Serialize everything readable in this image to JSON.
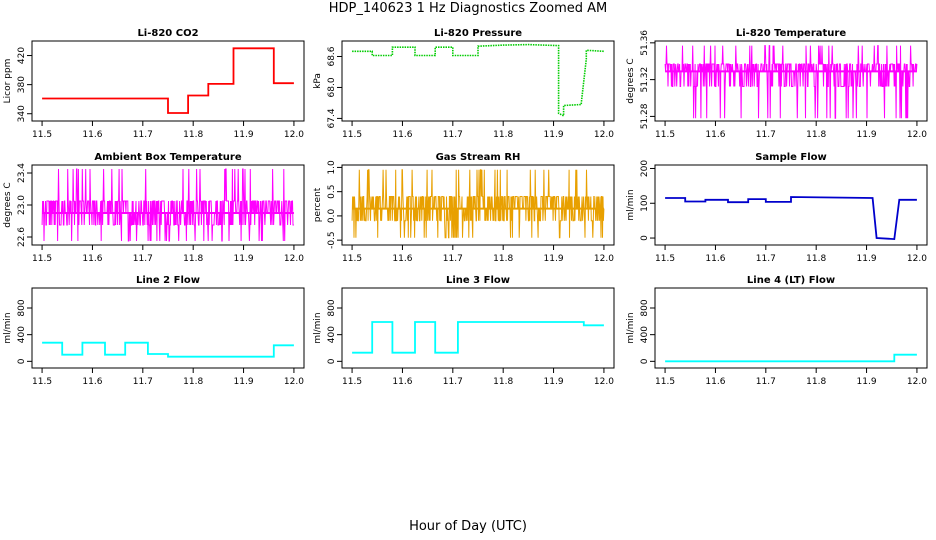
{
  "figure": {
    "title": "HDP_140623  1 Hz Diagnostics Zoomed AM",
    "bottom_label": "Hour of Day (UTC)"
  },
  "chart_data": [
    {
      "type": "line",
      "title": "Li-820 CO2",
      "xlabel": "",
      "ylabel": "Licor ppm",
      "xlim": [
        11.48,
        12.02
      ],
      "ylim": [
        330,
        440
      ],
      "x_ticks": [
        "11.5",
        "11.6",
        "11.7",
        "11.8",
        "11.9",
        "12.0"
      ],
      "y_ticks": [
        "340",
        "380",
        "420"
      ],
      "color": "#ff0000",
      "style": "line",
      "series": [
        {
          "x": [
            11.5,
            11.75,
            11.75,
            11.79,
            11.79,
            11.83,
            11.83,
            11.88,
            11.88,
            11.96,
            11.96,
            12.0
          ],
          "values": [
            361,
            361,
            341,
            341,
            365,
            365,
            381,
            381,
            430,
            430,
            382,
            382
          ]
        }
      ]
    },
    {
      "type": "line",
      "title": "Li-820 Pressure",
      "xlabel": "",
      "ylabel": "kPa",
      "xlim": [
        11.48,
        12.02
      ],
      "ylim": [
        67.35,
        68.9
      ],
      "x_ticks": [
        "11.5",
        "11.6",
        "11.7",
        "11.8",
        "11.9",
        "12.0"
      ],
      "y_ticks": [
        "67.4",
        "68.0",
        "68.6"
      ],
      "color": "#00cc00",
      "style": "dots",
      "series": [
        {
          "x": [
            11.5,
            11.54,
            11.54,
            11.58,
            11.58,
            11.625,
            11.625,
            11.665,
            11.665,
            11.7,
            11.7,
            11.75,
            11.75,
            11.8,
            11.85,
            11.91,
            11.91,
            11.92,
            11.92,
            11.955,
            11.955,
            11.965,
            11.965,
            12.0
          ],
          "values": [
            68.7,
            68.7,
            68.62,
            68.62,
            68.78,
            68.78,
            68.62,
            68.62,
            68.78,
            68.78,
            68.62,
            68.62,
            68.8,
            68.82,
            68.83,
            68.81,
            67.5,
            67.45,
            67.65,
            67.67,
            67.7,
            68.55,
            68.72,
            68.7
          ]
        }
      ]
    },
    {
      "type": "line",
      "title": "Li-820 Temperature",
      "xlabel": "",
      "ylabel": "degrees C",
      "xlim": [
        11.48,
        12.02
      ],
      "ylim": [
        51.275,
        51.362
      ],
      "x_ticks": [
        "11.5",
        "11.6",
        "11.7",
        "11.8",
        "11.9",
        "12.0"
      ],
      "y_ticks": [
        "51.28",
        "51.32",
        "51.36"
      ],
      "color": "#ff00ff",
      "style": "noise",
      "series": [
        {
          "x": [
            11.5,
            12.0
          ],
          "values": [
            51.329,
            51.329
          ]
        }
      ],
      "noise": {
        "levels": [
          51.278,
          51.3125,
          51.329,
          51.337,
          51.357
        ]
      }
    },
    {
      "type": "line",
      "title": "Ambient Box Temperature",
      "xlabel": "",
      "ylabel": "degrees C",
      "xlim": [
        11.48,
        12.02
      ],
      "ylim": [
        22.5,
        23.5
      ],
      "x_ticks": [
        "11.5",
        "11.6",
        "11.7",
        "11.8",
        "11.9",
        "12.0"
      ],
      "y_ticks": [
        "22.6",
        "23.0",
        "23.4"
      ],
      "color": "#ff00ff",
      "style": "noise",
      "series": [
        {
          "x": [
            11.5,
            12.0
          ],
          "values": [
            22.9,
            22.9
          ]
        }
      ],
      "noise": {
        "levels": [
          22.55,
          22.75,
          22.9,
          23.05,
          23.3,
          23.45
        ]
      }
    },
    {
      "type": "line",
      "title": "Gas Stream RH",
      "xlabel": "",
      "ylabel": "percent",
      "xlim": [
        11.48,
        12.02
      ],
      "ylim": [
        -0.6,
        1.05
      ],
      "x_ticks": [
        "11.5",
        "11.6",
        "11.7",
        "11.8",
        "11.9",
        "12.0"
      ],
      "y_ticks": [
        "-0.5",
        "0.0",
        "0.5",
        "1.0"
      ],
      "color": "#e8a000",
      "style": "noise",
      "series": [
        {
          "x": [
            11.5,
            12.0
          ],
          "values": [
            0.15,
            0.15
          ]
        }
      ],
      "noise": {
        "levels": [
          -0.45,
          -0.1,
          0.15,
          0.4,
          0.95
        ]
      }
    },
    {
      "type": "line",
      "title": "Sample Flow",
      "xlabel": "",
      "ylabel": "ml/min",
      "xlim": [
        11.48,
        12.02
      ],
      "ylim": [
        -20,
        210
      ],
      "x_ticks": [
        "11.5",
        "11.6",
        "11.7",
        "11.8",
        "11.9",
        "12.0"
      ],
      "y_ticks": [
        "0",
        "100",
        "200"
      ],
      "color": "#0000cc",
      "style": "line",
      "series": [
        {
          "x": [
            11.5,
            11.54,
            11.54,
            11.58,
            11.58,
            11.625,
            11.625,
            11.665,
            11.665,
            11.7,
            11.7,
            11.75,
            11.75,
            11.912,
            11.92,
            11.955,
            11.965,
            12.0
          ],
          "values": [
            115,
            115,
            105,
            105,
            110,
            110,
            103,
            103,
            112,
            112,
            104,
            104,
            118,
            115,
            0,
            -3,
            110,
            110
          ]
        }
      ]
    },
    {
      "type": "line",
      "title": "Line 2 Flow",
      "xlabel": "",
      "ylabel": "ml/min",
      "xlim": [
        11.48,
        12.02
      ],
      "ylim": [
        -100,
        1100
      ],
      "x_ticks": [
        "11.5",
        "11.6",
        "11.7",
        "11.8",
        "11.9",
        "12.0"
      ],
      "y_ticks": [
        "0",
        "400",
        "800"
      ],
      "color": "#00ffff",
      "style": "line",
      "series": [
        {
          "x": [
            11.5,
            11.54,
            11.54,
            11.58,
            11.58,
            11.625,
            11.625,
            11.665,
            11.665,
            11.71,
            11.71,
            11.75,
            11.75,
            11.96,
            11.96,
            12.0
          ],
          "values": [
            280,
            280,
            100,
            100,
            280,
            280,
            100,
            100,
            280,
            280,
            110,
            110,
            70,
            70,
            240,
            240
          ]
        }
      ]
    },
    {
      "type": "line",
      "title": "Line 3 Flow",
      "xlabel": "",
      "ylabel": "ml/min",
      "xlim": [
        11.48,
        12.02
      ],
      "ylim": [
        -100,
        1100
      ],
      "x_ticks": [
        "11.5",
        "11.6",
        "11.7",
        "11.8",
        "11.9",
        "12.0"
      ],
      "y_ticks": [
        "0",
        "400",
        "800"
      ],
      "color": "#00ffff",
      "style": "line",
      "series": [
        {
          "x": [
            11.5,
            11.54,
            11.54,
            11.58,
            11.58,
            11.625,
            11.625,
            11.665,
            11.665,
            11.71,
            11.71,
            11.96,
            11.96,
            12.0
          ],
          "values": [
            130,
            130,
            590,
            590,
            130,
            130,
            590,
            590,
            130,
            130,
            590,
            590,
            540,
            540
          ]
        }
      ]
    },
    {
      "type": "line",
      "title": "Line 4 (LT) Flow",
      "xlabel": "",
      "ylabel": "ml/min",
      "xlim": [
        11.48,
        12.02
      ],
      "ylim": [
        -100,
        1100
      ],
      "x_ticks": [
        "11.5",
        "11.6",
        "11.7",
        "11.8",
        "11.9",
        "12.0"
      ],
      "y_ticks": [
        "0",
        "400",
        "800"
      ],
      "color": "#00ffff",
      "style": "line",
      "series": [
        {
          "x": [
            11.5,
            11.955,
            11.955,
            12.0
          ],
          "values": [
            0,
            0,
            100,
            100
          ]
        }
      ]
    }
  ]
}
